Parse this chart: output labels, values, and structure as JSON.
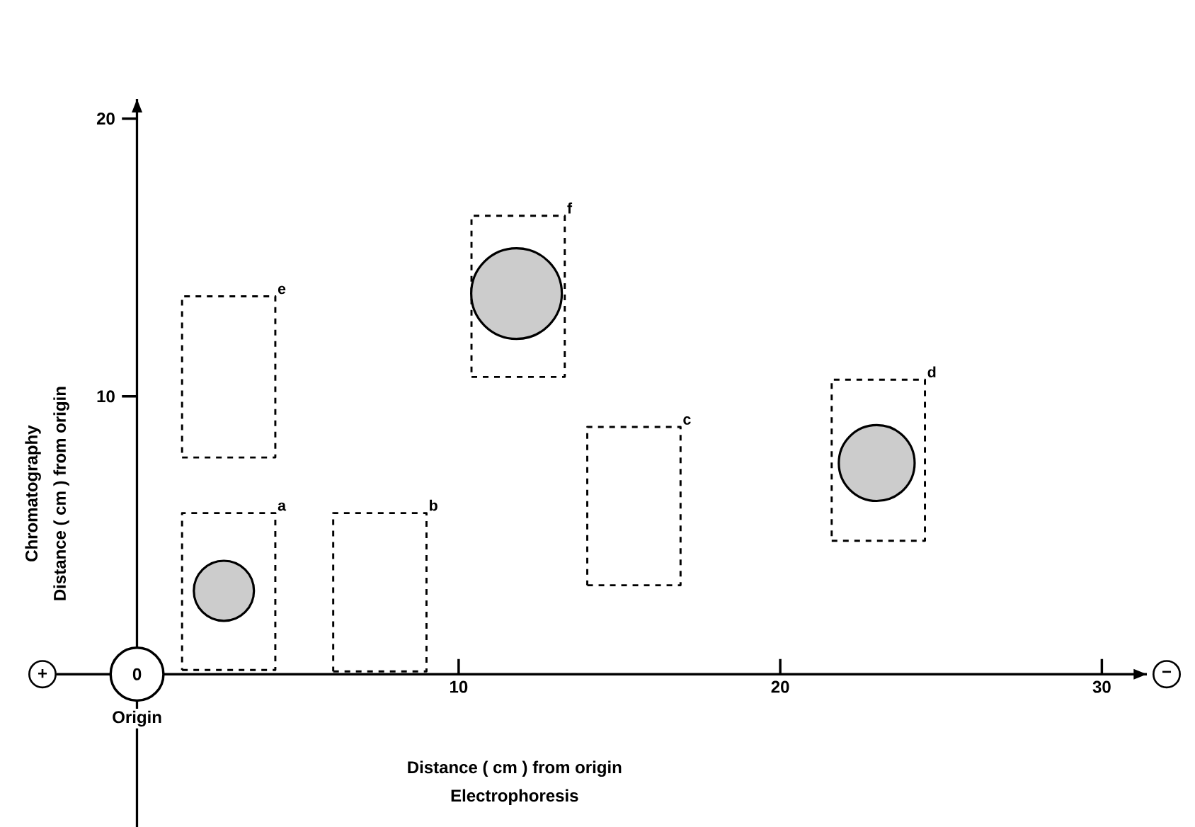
{
  "chart_data": {
    "type": "bar",
    "xlabel": "Distance ( cm ) from origin",
    "ylabel": "Distance ( cm ) from origin",
    "xlim": [
      -2.5,
      31.4
    ],
    "ylim": [
      -5.5,
      20.7
    ],
    "xticks": [
      10,
      20,
      30
    ],
    "yticks": [
      10,
      20
    ],
    "line_style": "dashed",
    "series": [
      {
        "color": "#000000",
        "x": [
          2.85,
          7.55,
          15.45,
          23.05
        ],
        "base": [
          0.15,
          0.1,
          3.2,
          4.8
        ],
        "values": [
          5.65,
          5.7,
          5.7,
          5.8
        ]
      },
      {
        "color": "#000000",
        "x": [
          2.85,
          11.85
        ],
        "base": [
          7.8,
          10.7
        ],
        "values": [
          5.8,
          5.8
        ]
      },
      {
        "type": "bubble",
        "color": "#cccccc",
        "x": [
          2.7,
          11.8,
          23.0
        ],
        "values": [
          3.0,
          13.7,
          7.6
        ],
        "sizes": [
          0.44,
          1,
          0.7
        ]
      }
    ],
    "annotations": [
      "a",
      "b",
      "c",
      "d",
      "e",
      "f",
      {
        "text": "0",
        "x": 0,
        "y": 0
      },
      {
        "text": "Origin",
        "x": 0,
        "y": -1.6
      },
      "Electrophoresis",
      "Chromatography",
      "+",
      "−"
    ]
  }
}
